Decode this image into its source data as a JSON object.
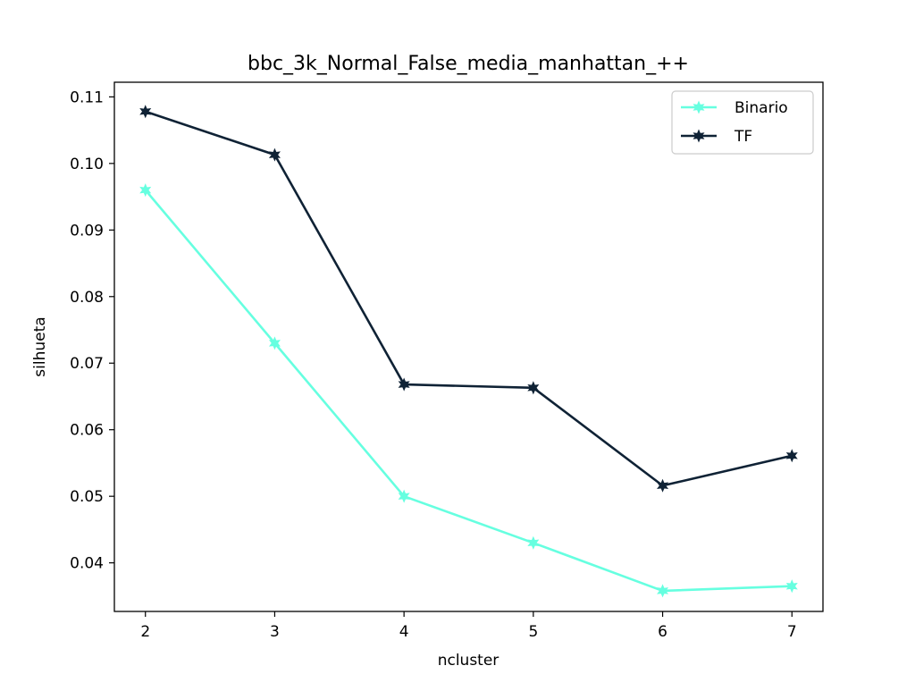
{
  "chart_data": {
    "type": "line",
    "title": "bbc_3k_Normal_False_media_manhattan_++",
    "xlabel": "ncluster",
    "ylabel": "silhueta",
    "x": [
      2,
      3,
      4,
      5,
      6,
      7
    ],
    "x_ticks": [
      "2",
      "3",
      "4",
      "5",
      "6",
      "7"
    ],
    "y_ticks": [
      "0.04",
      "0.05",
      "0.06",
      "0.07",
      "0.08",
      "0.09",
      "0.10",
      "0.11"
    ],
    "xlim": [
      1.76,
      7.24
    ],
    "ylim": [
      0.0327,
      0.1122
    ],
    "grid": false,
    "legend_position": "top-right",
    "series": [
      {
        "name": "Binario",
        "color": "#66ffe0",
        "marker": "star",
        "values": [
          0.096,
          0.073,
          0.05,
          0.043,
          0.0358,
          0.0365
        ]
      },
      {
        "name": "TF",
        "color": "#0f2235",
        "marker": "star",
        "values": [
          0.1078,
          0.1013,
          0.0668,
          0.0663,
          0.0516,
          0.0561
        ]
      }
    ]
  }
}
